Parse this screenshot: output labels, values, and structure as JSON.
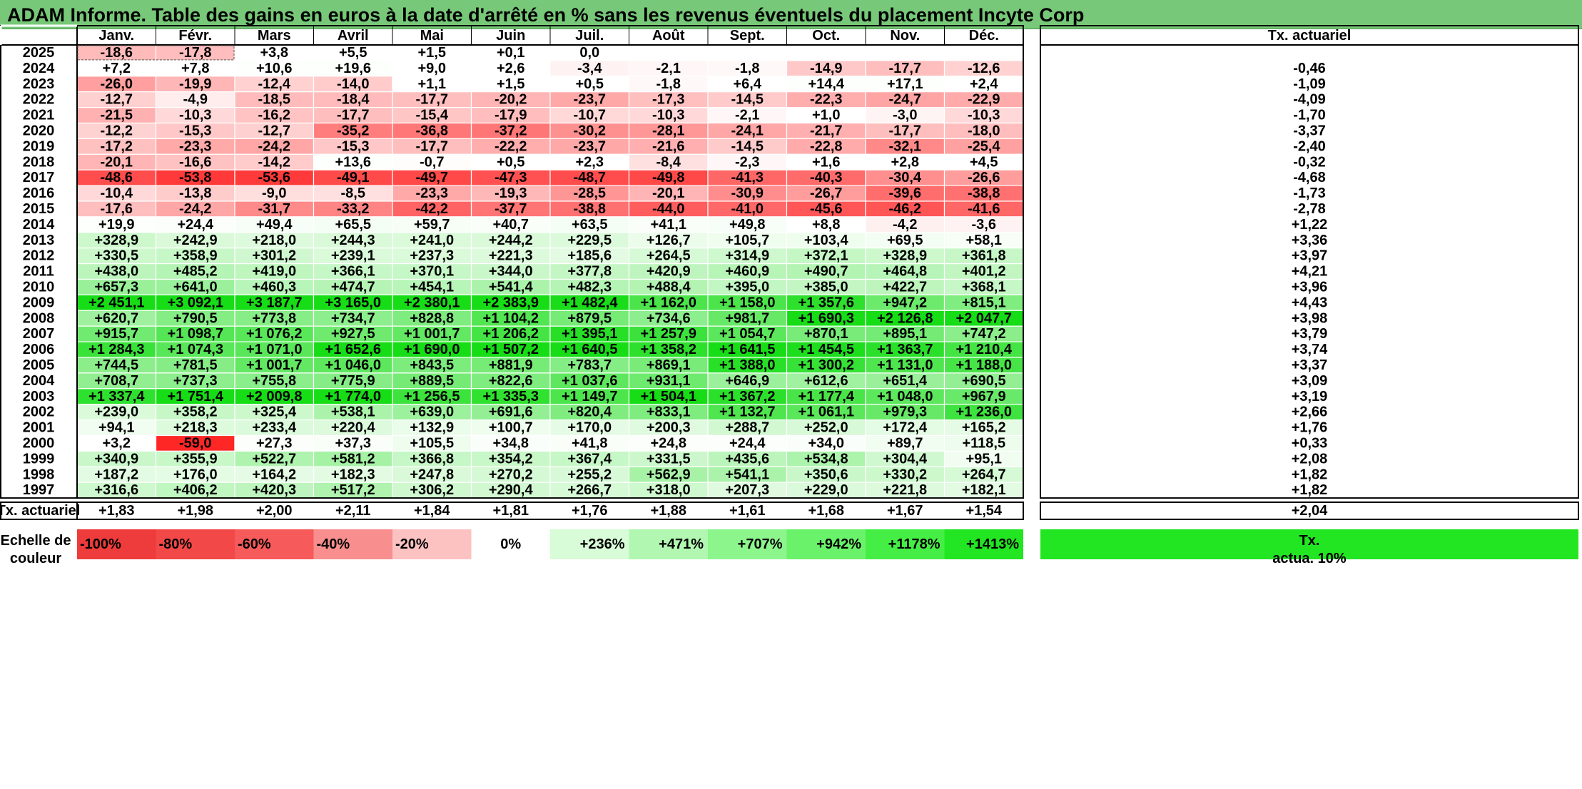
{
  "title": "ADAM Informe. Table des gains en euros à la date d'arrêté en % sans les revenus éventuels du placement Incyte Corp",
  "chart_data": {
    "type": "heatmap",
    "months": [
      "Janv.",
      "Févr.",
      "Mars",
      "Avril",
      "Mai",
      "Juin",
      "Juil.",
      "Août",
      "Sept.",
      "Oct.",
      "Nov.",
      "Déc."
    ],
    "rate_header": "Tx. actuariel",
    "rows": [
      {
        "year": "2025",
        "values": [
          "-18,6",
          "-17,8",
          "+3,8",
          "+5,5",
          "+1,5",
          "+0,1",
          "0,0",
          "",
          "",
          "",
          "",
          ""
        ],
        "rate": ""
      },
      {
        "year": "2024",
        "values": [
          "+7,2",
          "+7,8",
          "+10,6",
          "+19,6",
          "+9,0",
          "+2,6",
          "-3,4",
          "-2,1",
          "-1,8",
          "-14,9",
          "-17,7",
          "-12,6"
        ],
        "rate": "-0,46"
      },
      {
        "year": "2023",
        "values": [
          "-26,0",
          "-19,9",
          "-12,4",
          "-14,0",
          "+1,1",
          "+1,5",
          "+0,5",
          "-1,8",
          "+6,4",
          "+14,4",
          "+17,1",
          "+2,4"
        ],
        "rate": "-1,09"
      },
      {
        "year": "2022",
        "values": [
          "-12,7",
          "-4,9",
          "-18,5",
          "-18,4",
          "-17,7",
          "-20,2",
          "-23,7",
          "-17,3",
          "-14,5",
          "-22,3",
          "-24,7",
          "-22,9"
        ],
        "rate": "-4,09"
      },
      {
        "year": "2021",
        "values": [
          "-21,5",
          "-10,3",
          "-16,2",
          "-17,7",
          "-15,4",
          "-17,9",
          "-10,7",
          "-10,3",
          "-2,1",
          "+1,0",
          "-3,0",
          "-10,3"
        ],
        "rate": "-1,70"
      },
      {
        "year": "2020",
        "values": [
          "-12,2",
          "-15,3",
          "-12,7",
          "-35,2",
          "-36,8",
          "-37,2",
          "-30,2",
          "-28,1",
          "-24,1",
          "-21,7",
          "-17,7",
          "-18,0"
        ],
        "rate": "-3,37"
      },
      {
        "year": "2019",
        "values": [
          "-17,2",
          "-23,3",
          "-24,2",
          "-15,3",
          "-17,7",
          "-22,2",
          "-23,7",
          "-21,6",
          "-14,5",
          "-22,8",
          "-32,1",
          "-25,4"
        ],
        "rate": "-2,40"
      },
      {
        "year": "2018",
        "values": [
          "-20,1",
          "-16,6",
          "-14,2",
          "+13,6",
          "-0,7",
          "+0,5",
          "+2,3",
          "-8,4",
          "-2,3",
          "+1,6",
          "+2,8",
          "+4,5"
        ],
        "rate": "-0,32"
      },
      {
        "year": "2017",
        "values": [
          "-48,6",
          "-53,8",
          "-53,6",
          "-49,1",
          "-49,7",
          "-47,3",
          "-48,7",
          "-49,8",
          "-41,3",
          "-40,3",
          "-30,4",
          "-26,6"
        ],
        "rate": "-4,68"
      },
      {
        "year": "2016",
        "values": [
          "-10,4",
          "-13,8",
          "-9,0",
          "-8,5",
          "-23,3",
          "-19,3",
          "-28,5",
          "-20,1",
          "-30,9",
          "-26,7",
          "-39,6",
          "-38,8"
        ],
        "rate": "-1,73"
      },
      {
        "year": "2015",
        "values": [
          "-17,6",
          "-24,2",
          "-31,7",
          "-33,2",
          "-42,2",
          "-37,7",
          "-38,8",
          "-44,0",
          "-41,0",
          "-45,6",
          "-46,2",
          "-41,6"
        ],
        "rate": "-2,78"
      },
      {
        "year": "2014",
        "values": [
          "+19,9",
          "+24,4",
          "+49,4",
          "+65,5",
          "+59,7",
          "+40,7",
          "+63,5",
          "+41,1",
          "+49,8",
          "+8,8",
          "-4,2",
          "-3,6"
        ],
        "rate": "+1,22"
      },
      {
        "year": "2013",
        "values": [
          "+328,9",
          "+242,9",
          "+218,0",
          "+244,3",
          "+241,0",
          "+244,2",
          "+229,5",
          "+126,7",
          "+105,7",
          "+103,4",
          "+69,5",
          "+58,1"
        ],
        "rate": "+3,36"
      },
      {
        "year": "2012",
        "values": [
          "+330,5",
          "+358,9",
          "+301,2",
          "+239,1",
          "+237,3",
          "+221,3",
          "+185,6",
          "+264,5",
          "+314,9",
          "+372,1",
          "+328,9",
          "+361,8"
        ],
        "rate": "+3,97"
      },
      {
        "year": "2011",
        "values": [
          "+438,0",
          "+485,2",
          "+419,0",
          "+366,1",
          "+370,1",
          "+344,0",
          "+377,8",
          "+420,9",
          "+460,9",
          "+490,7",
          "+464,8",
          "+401,2"
        ],
        "rate": "+4,21"
      },
      {
        "year": "2010",
        "values": [
          "+657,3",
          "+641,0",
          "+460,3",
          "+474,7",
          "+454,1",
          "+541,4",
          "+482,3",
          "+488,4",
          "+395,0",
          "+385,0",
          "+422,7",
          "+368,1"
        ],
        "rate": "+3,96"
      },
      {
        "year": "2009",
        "values": [
          "+2 451,1",
          "+3 092,1",
          "+3 187,7",
          "+3 165,0",
          "+2 380,1",
          "+2 383,9",
          "+1 482,4",
          "+1 162,0",
          "+1 158,0",
          "+1 357,6",
          "+947,2",
          "+815,1"
        ],
        "rate": "+4,43"
      },
      {
        "year": "2008",
        "values": [
          "+620,7",
          "+790,5",
          "+773,8",
          "+734,7",
          "+828,8",
          "+1 104,2",
          "+879,5",
          "+734,6",
          "+981,7",
          "+1 690,3",
          "+2 126,8",
          "+2 047,7"
        ],
        "rate": "+3,98"
      },
      {
        "year": "2007",
        "values": [
          "+915,7",
          "+1 098,7",
          "+1 076,2",
          "+927,5",
          "+1 001,7",
          "+1 206,2",
          "+1 395,1",
          "+1 257,9",
          "+1 054,7",
          "+870,1",
          "+895,1",
          "+747,2"
        ],
        "rate": "+3,79"
      },
      {
        "year": "2006",
        "values": [
          "+1 284,3",
          "+1 074,3",
          "+1 071,0",
          "+1 652,6",
          "+1 690,0",
          "+1 507,2",
          "+1 640,5",
          "+1 358,2",
          "+1 641,5",
          "+1 454,5",
          "+1 363,7",
          "+1 210,4"
        ],
        "rate": "+3,74"
      },
      {
        "year": "2005",
        "values": [
          "+744,5",
          "+781,5",
          "+1 001,7",
          "+1 046,0",
          "+843,5",
          "+881,9",
          "+783,7",
          "+869,1",
          "+1 388,0",
          "+1 300,2",
          "+1 131,0",
          "+1 188,0"
        ],
        "rate": "+3,37"
      },
      {
        "year": "2004",
        "values": [
          "+708,7",
          "+737,3",
          "+755,8",
          "+775,9",
          "+889,5",
          "+822,6",
          "+1 037,6",
          "+931,1",
          "+646,9",
          "+612,6",
          "+651,4",
          "+690,5"
        ],
        "rate": "+3,09"
      },
      {
        "year": "2003",
        "values": [
          "+1 337,4",
          "+1 751,4",
          "+2 009,8",
          "+1 774,0",
          "+1 256,5",
          "+1 335,3",
          "+1 149,7",
          "+1 504,1",
          "+1 367,2",
          "+1 177,4",
          "+1 048,0",
          "+967,9"
        ],
        "rate": "+3,19"
      },
      {
        "year": "2002",
        "values": [
          "+239,0",
          "+358,2",
          "+325,4",
          "+538,1",
          "+639,0",
          "+691,6",
          "+820,4",
          "+833,1",
          "+1 132,7",
          "+1 061,1",
          "+979,3",
          "+1 236,0"
        ],
        "rate": "+2,66"
      },
      {
        "year": "2001",
        "values": [
          "+94,1",
          "+218,3",
          "+233,4",
          "+220,4",
          "+132,9",
          "+100,7",
          "+170,0",
          "+200,3",
          "+288,7",
          "+252,0",
          "+172,4",
          "+165,2"
        ],
        "rate": "+1,76"
      },
      {
        "year": "2000",
        "values": [
          "+3,2",
          "-59,0",
          "+27,3",
          "+37,3",
          "+105,5",
          "+34,8",
          "+41,8",
          "+24,8",
          "+24,4",
          "+34,0",
          "+89,7",
          "+118,5"
        ],
        "rate": "+0,33"
      },
      {
        "year": "1999",
        "values": [
          "+340,9",
          "+355,9",
          "+522,7",
          "+581,2",
          "+366,8",
          "+354,2",
          "+367,4",
          "+331,5",
          "+435,6",
          "+534,8",
          "+304,4",
          "+95,1"
        ],
        "rate": "+2,08"
      },
      {
        "year": "1998",
        "values": [
          "+187,2",
          "+176,0",
          "+164,2",
          "+182,3",
          "+247,8",
          "+270,2",
          "+255,2",
          "+562,9",
          "+541,1",
          "+350,6",
          "+330,2",
          "+264,7"
        ],
        "rate": "+1,82"
      },
      {
        "year": "1997",
        "values": [
          "+316,6",
          "+406,2",
          "+420,3",
          "+517,2",
          "+306,2",
          "+290,4",
          "+266,7",
          "+318,0",
          "+207,3",
          "+229,0",
          "+221,8",
          "+182,1"
        ],
        "rate": "+1,82"
      }
    ],
    "summary": {
      "label": "Tx. actuariel",
      "values": [
        "+1,83",
        "+1,98",
        "+2,00",
        "+2,11",
        "+1,84",
        "+1,81",
        "+1,76",
        "+1,88",
        "+1,61",
        "+1,68",
        "+1,67",
        "+1,54"
      ],
      "total": "+2,04"
    },
    "scale": {
      "label_line1": "Echelle de",
      "label_line2": "couleur",
      "stops": [
        {
          "text": "-100%",
          "color": "#ee3b3b"
        },
        {
          "text": "-80%",
          "color": "#f24848"
        },
        {
          "text": "-60%",
          "color": "#f65a5a"
        },
        {
          "text": "-40%",
          "color": "#f88e8e"
        },
        {
          "text": "-20%",
          "color": "#fcc2c2"
        },
        {
          "text": "0%",
          "color": "#ffffff"
        },
        {
          "text": "+236%",
          "color": "#d7fcd7"
        },
        {
          "text": "+471%",
          "color": "#b1f7b1"
        },
        {
          "text": "+707%",
          "color": "#8cf58c"
        },
        {
          "text": "+942%",
          "color": "#6af26a"
        },
        {
          "text": "+1178%",
          "color": "#45ee45"
        },
        {
          "text": "+1413%",
          "color": "#22e622"
        }
      ],
      "rate_box_line1": "Tx.",
      "rate_box_line2": "actua. 10%",
      "rate_box_color": "#22e622"
    },
    "colors": {
      "negative_full": "#ff2222",
      "positive_full": "#16dd16",
      "title_bar": "#77c878"
    }
  }
}
